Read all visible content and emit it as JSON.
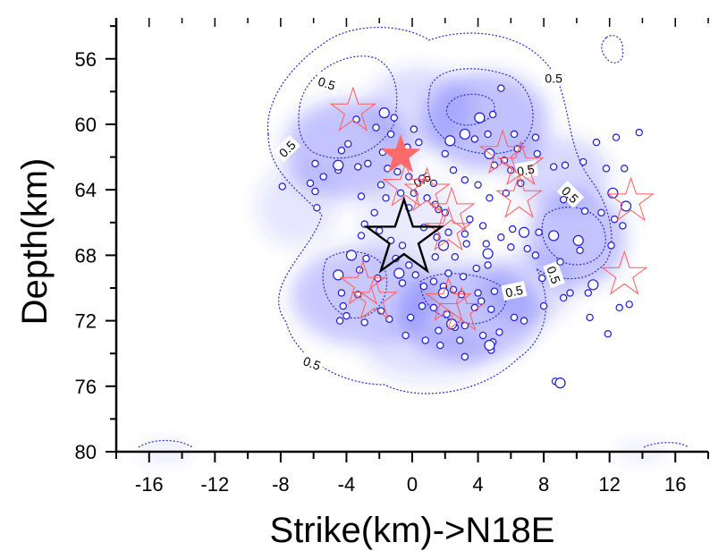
{
  "chart_data": {
    "type": "scatter",
    "title": "",
    "xlabel": "Strike(km)->N18E",
    "ylabel": "Depth(km)",
    "xlim": [
      -18,
      18
    ],
    "ylim": [
      80,
      53.5
    ],
    "y_inverted": true,
    "xticks": [
      -16,
      -12,
      -8,
      -4,
      0,
      4,
      8,
      12,
      16
    ],
    "yticks": [
      56,
      60,
      64,
      68,
      72,
      76,
      80
    ],
    "grid": false,
    "background": "density shading (blue) with dotted contour lines",
    "contour_level_label": "0.5",
    "colors": {
      "shading": "#3a3aff",
      "contour": "#2a2acc",
      "event_marker_edge": "#1a1ad9",
      "star_outline": "#ff5a5a",
      "star_filled": "#ff6a6a",
      "mainshock_star": "#000000"
    },
    "series": [
      {
        "marker": "small circle (blue edge, white fill)",
        "points": [
          [
            -3.4,
            59.7
          ],
          [
            -2.2,
            60.2
          ],
          [
            -1.1,
            59.6
          ],
          [
            -1.3,
            60.6
          ],
          [
            0.1,
            60.3
          ],
          [
            -0.3,
            61.4
          ],
          [
            -1.8,
            61.7
          ],
          [
            0.4,
            61.1
          ],
          [
            -3.3,
            62.6
          ],
          [
            -2.7,
            62.4
          ],
          [
            -4.5,
            62.8
          ],
          [
            -0.9,
            62.9
          ],
          [
            0.6,
            63.3
          ],
          [
            1.3,
            63.6
          ],
          [
            2.5,
            62.8
          ],
          [
            3.2,
            63.4
          ],
          [
            -1.9,
            63.7
          ],
          [
            -0.7,
            64.2
          ],
          [
            0.9,
            64.5
          ],
          [
            -0.2,
            65.1
          ],
          [
            1.6,
            65.2
          ],
          [
            -6.2,
            63.6
          ],
          [
            -5.9,
            64.1
          ],
          [
            -5.4,
            63.2
          ],
          [
            -7.9,
            63.8
          ],
          [
            -5.8,
            65.1
          ],
          [
            -3.1,
            64.4
          ],
          [
            -2.3,
            65.4
          ],
          [
            -2.9,
            66.1
          ],
          [
            -3.1,
            66.8
          ],
          [
            -2.0,
            66.5
          ],
          [
            -1.3,
            67.1
          ],
          [
            -0.6,
            67.4
          ],
          [
            -1.0,
            68.2
          ],
          [
            -0.2,
            68.6
          ],
          [
            -2.8,
            68.2
          ],
          [
            -3.2,
            68.9
          ],
          [
            -2.1,
            69.4
          ],
          [
            -0.6,
            69.7
          ],
          [
            0.2,
            69.2
          ],
          [
            0.7,
            69.9
          ],
          [
            1.3,
            69.6
          ],
          [
            1.9,
            69.9
          ],
          [
            2.5,
            70.1
          ],
          [
            3.0,
            70.4
          ],
          [
            -3.3,
            70.4
          ],
          [
            -4.3,
            70.3
          ],
          [
            -4.2,
            71.1
          ],
          [
            -4.0,
            71.7
          ],
          [
            -4.4,
            72.0
          ],
          [
            -2.9,
            72.1
          ],
          [
            -1.9,
            71.4
          ],
          [
            -1.4,
            71.9
          ],
          [
            -0.1,
            71.8
          ],
          [
            0.6,
            71.1
          ],
          [
            1.3,
            71.2
          ],
          [
            2.1,
            71.6
          ],
          [
            2.6,
            72.4
          ],
          [
            1.6,
            72.6
          ],
          [
            -0.4,
            72.9
          ],
          [
            0.8,
            73.2
          ],
          [
            1.7,
            73.5
          ],
          [
            3.2,
            72.3
          ],
          [
            3.8,
            71.2
          ],
          [
            4.2,
            70.8
          ],
          [
            4.8,
            71.3
          ],
          [
            2.2,
            69.1
          ],
          [
            3.1,
            69.3
          ],
          [
            4.0,
            70.3
          ],
          [
            5.0,
            70.2
          ],
          [
            4.6,
            68.6
          ],
          [
            3.9,
            68.8
          ],
          [
            2.6,
            68.1
          ],
          [
            3.3,
            67.3
          ],
          [
            1.4,
            68.1
          ],
          [
            4.8,
            73.8
          ],
          [
            4.9,
            73.3
          ],
          [
            4.3,
            72.9
          ],
          [
            3.2,
            74.2
          ],
          [
            2.9,
            73.2
          ],
          [
            5.3,
            72.7
          ],
          [
            6.2,
            71.8
          ],
          [
            6.8,
            72.0
          ],
          [
            8.0,
            71.1
          ],
          [
            9.2,
            70.6
          ],
          [
            10.7,
            70.3
          ],
          [
            10.8,
            71.8
          ],
          [
            11.9,
            72.8
          ],
          [
            13.2,
            71.0
          ],
          [
            12.6,
            71.2
          ],
          [
            8.7,
            75.7
          ],
          [
            4.5,
            67.3
          ],
          [
            5.4,
            66.9
          ],
          [
            6.0,
            67.5
          ],
          [
            7.0,
            67.6
          ],
          [
            7.7,
            66.6
          ],
          [
            6.1,
            66.4
          ],
          [
            4.3,
            66.2
          ],
          [
            3.5,
            65.8
          ],
          [
            3.2,
            66.7
          ],
          [
            4.7,
            64.5
          ],
          [
            5.7,
            64.2
          ],
          [
            6.6,
            63.6
          ],
          [
            4.0,
            63.7
          ],
          [
            5.0,
            62.5
          ],
          [
            5.6,
            62.2
          ],
          [
            6.0,
            62.8
          ],
          [
            6.4,
            61.5
          ],
          [
            7.6,
            61.8
          ],
          [
            8.6,
            62.6
          ],
          [
            9.3,
            62.5
          ],
          [
            10.4,
            62.3
          ],
          [
            11.2,
            61.1
          ],
          [
            12.4,
            60.8
          ],
          [
            11.8,
            62.7
          ],
          [
            13.8,
            60.5
          ],
          [
            12.9,
            62.7
          ],
          [
            9.2,
            64.6
          ],
          [
            10.5,
            65.3
          ],
          [
            11.5,
            65.4
          ],
          [
            12.3,
            65.8
          ],
          [
            12.8,
            66.2
          ],
          [
            12.1,
            67.4
          ],
          [
            10.2,
            67.7
          ],
          [
            9.0,
            68.4
          ],
          [
            7.5,
            68.0
          ],
          [
            7.9,
            69.4
          ],
          [
            9.6,
            70.3
          ],
          [
            2.0,
            65.4
          ],
          [
            2.2,
            66.6
          ],
          [
            0.1,
            64.2
          ],
          [
            1.4,
            64.9
          ],
          [
            0.7,
            66.3
          ],
          [
            1.5,
            66.9
          ],
          [
            5.4,
            57.8
          ],
          [
            4.9,
            59.4
          ],
          [
            6.2,
            60.6
          ],
          [
            4.6,
            60.6
          ],
          [
            7.5,
            60.8
          ],
          [
            3.8,
            60.9
          ],
          [
            2.0,
            61.8
          ],
          [
            -1.5,
            62.7
          ],
          [
            -1.6,
            64.5
          ],
          [
            -0.2,
            63.2
          ],
          [
            -3.9,
            61.2
          ],
          [
            -4.3,
            61.6
          ],
          [
            -5.9,
            62.4
          ]
        ]
      }
    ],
    "large_points": [
      [
        -4.5,
        62.5
      ],
      [
        -1.7,
        59.3
      ],
      [
        4.1,
        59.6
      ],
      [
        3.2,
        60.6
      ],
      [
        2.3,
        61.0
      ],
      [
        4.7,
        61.8
      ],
      [
        1.9,
        67.4
      ],
      [
        6.8,
        66.6
      ],
      [
        4.6,
        67.9
      ],
      [
        1.9,
        70.3
      ],
      [
        2.4,
        72.2
      ],
      [
        -4.5,
        69.2
      ],
      [
        -3.7,
        68.0
      ],
      [
        -0.8,
        69.1
      ],
      [
        11.0,
        69.8
      ],
      [
        10.1,
        67.1
      ],
      [
        8.6,
        66.8
      ],
      [
        13.0,
        65.0
      ],
      [
        12.2,
        64.2
      ],
      [
        9.0,
        75.8
      ],
      [
        4.7,
        73.5
      ]
    ],
    "outline_stars": [
      [
        -3.6,
        59.2
      ],
      [
        -0.4,
        63.8
      ],
      [
        0.9,
        64.1
      ],
      [
        2.4,
        65.3
      ],
      [
        2.2,
        66.5
      ],
      [
        5.5,
        61.8
      ],
      [
        6.6,
        62.5
      ],
      [
        6.5,
        64.5
      ],
      [
        13.3,
        64.7
      ],
      [
        12.9,
        69.2
      ],
      [
        -3.0,
        69.8
      ],
      [
        -2.3,
        70.7
      ],
      [
        2.2,
        70.8
      ],
      [
        3.0,
        71.4
      ]
    ],
    "filled_star": [
      -0.7,
      61.9
    ],
    "mainshock_star": [
      -0.5,
      67.0
    ]
  }
}
